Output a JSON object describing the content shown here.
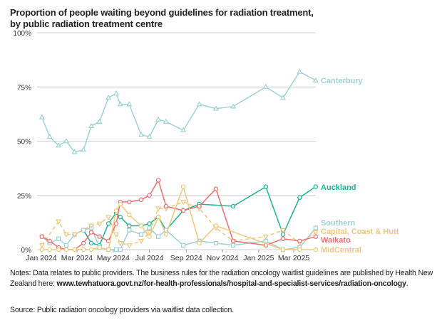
{
  "chart_data": {
    "type": "line",
    "title": "Proportion of people waiting beyond guidelines for radiation treatment,",
    "subtitle": "by public radiation treatment centre",
    "xlabel": "",
    "ylabel": "",
    "ylim": [
      0,
      100
    ],
    "yticks": [
      "0%",
      "25%",
      "50%",
      "75%",
      "100%"
    ],
    "ytick_values": [
      0,
      25,
      50,
      75,
      100
    ],
    "xticks": [
      "Jan 2024",
      "Mar 2024",
      "May 2024",
      "Jul 2024",
      "Sep 2024",
      "Nov 2024",
      "Jan 2025",
      "Mar 2025"
    ],
    "xtick_dates": [
      "2024-01-01",
      "2024-03-01",
      "2024-05-01",
      "2024-07-01",
      "2024-09-01",
      "2024-11-01",
      "2025-01-01",
      "2025-03-01"
    ],
    "grid": "horizontal",
    "legend": "direct labels at right end of lines",
    "x": [
      "2024-01-02",
      "2024-01-15",
      "2024-01-30",
      "2024-02-12",
      "2024-02-26",
      "2024-03-12",
      "2024-03-25",
      "2024-04-08",
      "2024-04-23",
      "2024-05-06",
      "2024-05-13",
      "2024-05-28",
      "2024-06-17",
      "2024-07-01",
      "2024-07-16",
      "2024-07-29",
      "2024-08-27",
      "2024-09-23",
      "2024-10-21",
      "2024-11-19",
      "2025-01-13",
      "2025-02-11",
      "2025-03-11",
      "2025-04-07"
    ],
    "series": [
      {
        "name": "Canterbury",
        "color": "#9fd4d4",
        "marker": "triangle-up",
        "dash": false,
        "values": [
          61,
          52,
          48,
          50,
          45,
          46,
          57,
          59,
          70,
          72,
          67,
          67,
          53,
          52,
          60,
          59,
          55,
          67,
          65,
          66,
          75,
          70,
          82,
          78
        ]
      },
      {
        "name": "Auckland",
        "color": "#1bb58e",
        "marker": "circle",
        "dash": false,
        "values": [
          null,
          null,
          null,
          null,
          null,
          9,
          3,
          2,
          12,
          17,
          15,
          11,
          11,
          12,
          15,
          9,
          18,
          21,
          null,
          20,
          29,
          7,
          24,
          29
        ]
      },
      {
        "name": "Southern",
        "color": "#9fd0d6",
        "marker": "square",
        "dash": false,
        "values": [
          6,
          3,
          5,
          2,
          7,
          9,
          10,
          1,
          0,
          0,
          0,
          9,
          7,
          10,
          6,
          9,
          2,
          4,
          3,
          2,
          4,
          0,
          1,
          10
        ]
      },
      {
        "name": "Capital, Coast & Hutt",
        "color": "#f2c77c",
        "marker": "triangle-down",
        "dash": true,
        "values": [
          2,
          null,
          13,
          7,
          7,
          null,
          11,
          12,
          15,
          7,
          3,
          2,
          4,
          8,
          19,
          19,
          22,
          19,
          10,
          4,
          6,
          9,
          3,
          8
        ]
      },
      {
        "name": "Waikato",
        "color": "#f06e6e",
        "marker": "circle",
        "dash": false,
        "values": [
          6,
          4,
          1,
          0,
          0,
          3,
          8,
          6,
          4,
          12,
          22,
          22,
          23,
          25,
          32,
          20,
          18,
          20,
          28,
          4,
          2,
          5,
          4,
          6
        ]
      },
      {
        "name": "MidCentral",
        "color": "#f4c87c",
        "marker": "circle",
        "dash": false,
        "values": [
          0,
          0,
          0,
          0,
          0,
          0,
          0,
          1,
          0,
          18,
          21,
          16,
          11,
          6,
          15,
          7,
          29,
          3,
          11,
          null,
          null,
          0,
          0,
          0
        ]
      }
    ]
  },
  "notes": {
    "prefix": "Notes: Data relates to public providers. The business rules for the radiation oncology waitlist guidelines are published by Health New Zealand here: ",
    "link": "www.tewhatuora.govt.nz/for-health-professionals/hospital-and-specialist-services/radiation-oncology",
    "suffix": "."
  },
  "source": "Source: Public radiation oncology providers via waitlist data collection."
}
